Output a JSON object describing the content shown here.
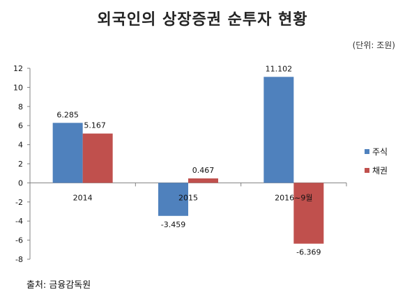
{
  "title": "외국인의 상장증권 순투자 현황",
  "unit": "(단위: 조원)",
  "source": "출처: 금융감독원",
  "colors": {
    "series_0": "#4F81BD",
    "series_1": "#C0504D",
    "axis": "#808080"
  },
  "chart_data": {
    "type": "bar",
    "categories": [
      "2014",
      "2015",
      "2016~9월"
    ],
    "series": [
      {
        "name": "주식",
        "values": [
          6.285,
          -3.459,
          11.102
        ],
        "labels": [
          "6.285",
          "-3.459",
          "11.102"
        ]
      },
      {
        "name": "채권",
        "values": [
          5.167,
          0.467,
          -6.369
        ],
        "labels": [
          "5.167",
          "0.467",
          "-6.369"
        ]
      }
    ],
    "ylim": [
      -8,
      12
    ],
    "yticks": [
      12,
      10,
      8,
      6,
      4,
      2,
      0,
      -2,
      -4,
      -6,
      -8
    ],
    "grid": false,
    "legend": "right"
  }
}
